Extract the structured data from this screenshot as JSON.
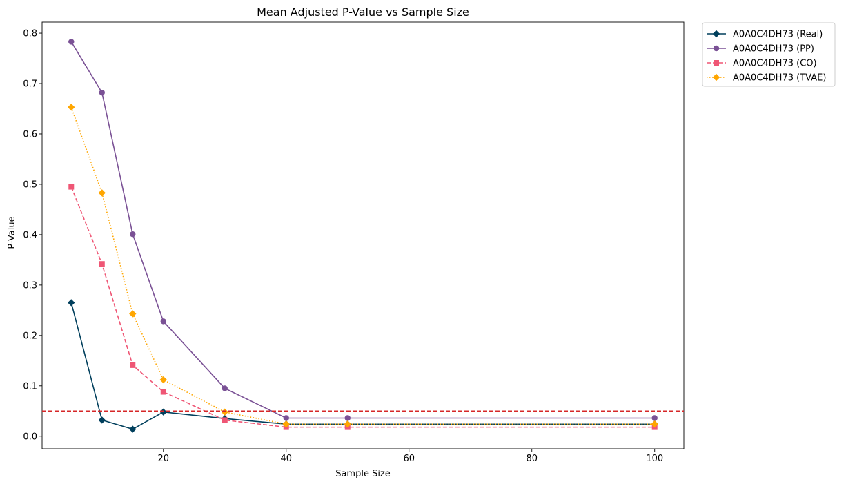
{
  "chart_data": {
    "type": "line",
    "title": "Mean Adjusted P-Value vs Sample Size",
    "xlabel": "Sample Size",
    "ylabel": "P-Value",
    "xlim": [
      0.25,
      104.75
    ],
    "ylim": [
      -0.025,
      0.822
    ],
    "xticks": [
      20,
      40,
      60,
      80,
      100
    ],
    "yticks": [
      0.0,
      0.1,
      0.2,
      0.3,
      0.4,
      0.5,
      0.6,
      0.7,
      0.8
    ],
    "xtick_labels": [
      "20",
      "40",
      "60",
      "80",
      "100"
    ],
    "ytick_labels": [
      "0.0",
      "0.1",
      "0.2",
      "0.3",
      "0.4",
      "0.5",
      "0.6",
      "0.7",
      "0.8"
    ],
    "grid": false,
    "legend_position": "outside-top-right",
    "x": [
      5,
      10,
      15,
      20,
      30,
      40,
      50,
      100
    ],
    "reference_line": {
      "y": 0.05,
      "color": "#d62728",
      "style": "dashed"
    },
    "series": [
      {
        "name": "A0A0C4DH73 (Real)",
        "color": "#003f5c",
        "marker": "diamond",
        "linestyle": "solid",
        "values": [
          0.265,
          0.032,
          0.014,
          0.048,
          0.035,
          0.024,
          0.024,
          0.024
        ]
      },
      {
        "name": "A0A0C4DH73 (PP)",
        "color": "#7a5195",
        "marker": "circle",
        "linestyle": "solid",
        "values": [
          0.783,
          0.682,
          0.401,
          0.228,
          0.095,
          0.036,
          0.036,
          0.036
        ]
      },
      {
        "name": "A0A0C4DH73 (CO)",
        "color": "#ef5675",
        "marker": "square",
        "linestyle": "dashed",
        "values": [
          0.495,
          0.342,
          0.141,
          0.088,
          0.032,
          0.018,
          0.018,
          0.018
        ]
      },
      {
        "name": "A0A0C4DH73 (TVAE)",
        "color": "#ffa600",
        "marker": "diamond",
        "linestyle": "dotted",
        "values": [
          0.653,
          0.483,
          0.243,
          0.112,
          0.048,
          0.024,
          0.024,
          0.024
        ]
      }
    ]
  }
}
